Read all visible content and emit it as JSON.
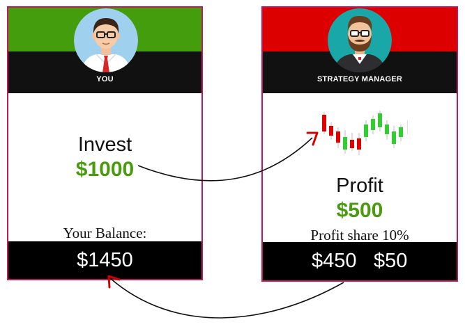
{
  "you_card": {
    "header_color": "#449d0d",
    "role": "YOU",
    "invest_label": "Invest",
    "invest_amount": "$1000",
    "balance_label": "Your Balance:",
    "balance_value": "$1450"
  },
  "manager_card": {
    "header_color": "#dd0000",
    "role": "STRATEGY MANAGER",
    "profit_label": "Profit",
    "profit_amount": "$500",
    "profit_share_label": "Profit share 10%",
    "investor_share": "$450",
    "manager_share": "$50"
  },
  "icons": {
    "you_avatar": "man-with-glasses-avatar-icon",
    "manager_avatar": "bearded-man-avatar-icon",
    "candlestick": "candlestick-chart-icon",
    "arrow_to_manager": "curved-arrow-icon",
    "arrow_to_balance": "curved-arrow-icon"
  },
  "colors": {
    "accent_green": "#4a9b0f",
    "card_border": "#c2185b",
    "arrowhead": "#d40000"
  }
}
